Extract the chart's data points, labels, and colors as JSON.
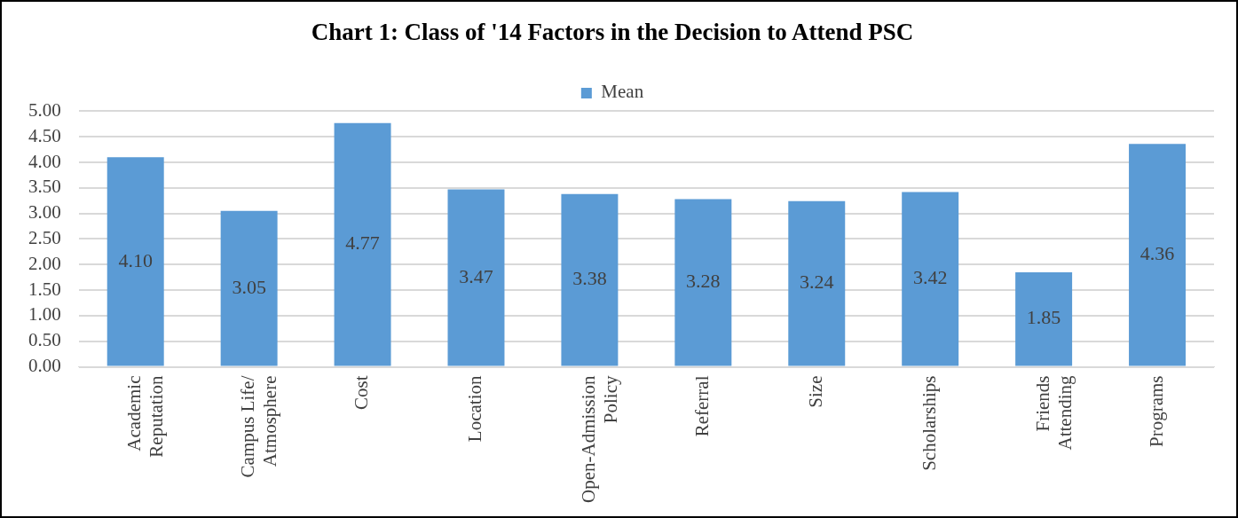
{
  "chart_data": {
    "type": "bar",
    "title": "Chart 1: Class of '14 Factors in the Decision to Attend PSC",
    "categories": [
      "Academic\nReputation",
      "Campus Life/\nAtmosphere",
      "Cost",
      "Location",
      "Open-Admission\nPolicy",
      "Referral",
      "Size",
      "Scholarships",
      "Friends\nAttending",
      "Programs"
    ],
    "series": [
      {
        "name": "Mean",
        "color": "#5b9bd5",
        "values": [
          4.1,
          3.05,
          4.77,
          3.47,
          3.38,
          3.28,
          3.24,
          3.42,
          1.85,
          4.36
        ],
        "value_labels": [
          "4.10",
          "3.05",
          "4.77",
          "3.47",
          "3.38",
          "3.28",
          "3.24",
          "3.42",
          "1.85",
          "4.36"
        ]
      }
    ],
    "ylim": [
      0,
      5
    ],
    "yticks": [
      {
        "value": 0,
        "label": "0.00"
      },
      {
        "value": 0.5,
        "label": "0.50"
      },
      {
        "value": 1,
        "label": "1.00"
      },
      {
        "value": 1.5,
        "label": "1.50"
      },
      {
        "value": 2,
        "label": "2.00"
      },
      {
        "value": 2.5,
        "label": "2.50"
      },
      {
        "value": 3,
        "label": "3.00"
      },
      {
        "value": 3.5,
        "label": "3.50"
      },
      {
        "value": 4,
        "label": "4.00"
      },
      {
        "value": 4.5,
        "label": "4.50"
      },
      {
        "value": 5,
        "label": "5.00"
      }
    ],
    "grid": "y",
    "legend": "top"
  }
}
